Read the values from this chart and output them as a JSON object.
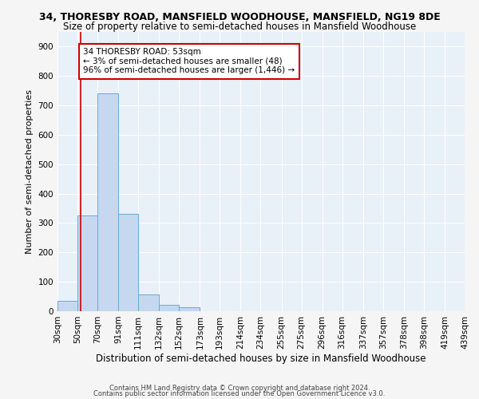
{
  "title1": "34, THORESBY ROAD, MANSFIELD WOODHOUSE, MANSFIELD, NG19 8DE",
  "title2": "Size of property relative to semi-detached houses in Mansfield Woodhouse",
  "xlabel": "Distribution of semi-detached houses by size in Mansfield Woodhouse",
  "ylabel": "Number of semi-detached properties",
  "bar_values": [
    35,
    325,
    740,
    330,
    57,
    22,
    13,
    0,
    0,
    0,
    0,
    0,
    0,
    0,
    0,
    0,
    0,
    0,
    0,
    0
  ],
  "bin_labels": [
    "30sqm",
    "50sqm",
    "70sqm",
    "91sqm",
    "111sqm",
    "132sqm",
    "152sqm",
    "173sqm",
    "193sqm",
    "214sqm",
    "234sqm",
    "255sqm",
    "275sqm",
    "296sqm",
    "316sqm",
    "337sqm",
    "357sqm",
    "378sqm",
    "398sqm",
    "419sqm",
    "439sqm"
  ],
  "bin_edges": [
    30,
    50,
    70,
    91,
    111,
    132,
    152,
    173,
    193,
    214,
    234,
    255,
    275,
    296,
    316,
    337,
    357,
    378,
    398,
    419,
    439
  ],
  "bar_color": "#c5d8f0",
  "bar_edge_color": "#6aaad4",
  "subject_value": 53,
  "subject_line_color": "#cc0000",
  "annotation_text": "34 THORESBY ROAD: 53sqm\n← 3% of semi-detached houses are smaller (48)\n96% of semi-detached houses are larger (1,446) →",
  "annotation_box_color": "#ffffff",
  "annotation_box_edge": "#cc0000",
  "ylim": [
    0,
    950
  ],
  "yticks": [
    0,
    100,
    200,
    300,
    400,
    500,
    600,
    700,
    800,
    900
  ],
  "footer1": "Contains HM Land Registry data © Crown copyright and database right 2024.",
  "footer2": "Contains public sector information licensed under the Open Government Licence v3.0.",
  "bg_color": "#e8f0f8",
  "grid_color": "#ffffff",
  "fig_bg_color": "#f5f5f5",
  "title1_fontsize": 9,
  "title2_fontsize": 8.5,
  "ylabel_fontsize": 8,
  "xlabel_fontsize": 8.5,
  "tick_fontsize": 7.5,
  "annotation_fontsize": 7.5,
  "footer_fontsize": 6
}
